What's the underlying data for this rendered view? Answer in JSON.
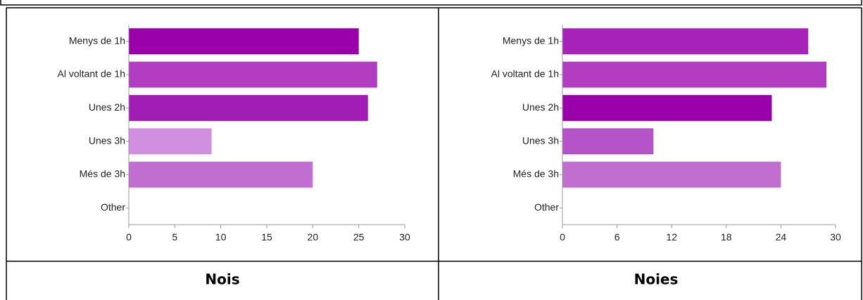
{
  "chart_data": [
    {
      "type": "bar",
      "orientation": "horizontal",
      "title": "Nois",
      "categories": [
        "Menys de 1h",
        "Al voltant de 1h",
        "Unes 2h",
        "Unes 3h",
        "Més de 3h",
        "Other"
      ],
      "values": [
        25,
        27,
        26,
        9,
        20,
        0
      ],
      "colors": [
        "#9900aa",
        "#b03cc0",
        "#a21db5",
        "#d18fdf",
        "#c06fd0",
        "#c06fd0"
      ],
      "xlim": [
        0,
        30
      ],
      "xticks": [
        0,
        5,
        10,
        15,
        20,
        25,
        30
      ]
    },
    {
      "type": "bar",
      "orientation": "horizontal",
      "title": "Noies",
      "categories": [
        "Menys de 1h",
        "Al voltant de 1h",
        "Unes 2h",
        "Unes 3h",
        "Més de 3h",
        "Other"
      ],
      "values": [
        27,
        29,
        23,
        10,
        24,
        0
      ],
      "colors": [
        "#a622b8",
        "#b03cc0",
        "#9900aa",
        "#b452c8",
        "#c06fd0",
        "#c06fd0"
      ],
      "xlim": [
        0,
        30
      ],
      "xticks": [
        0,
        6,
        12,
        18,
        24,
        30
      ]
    }
  ]
}
